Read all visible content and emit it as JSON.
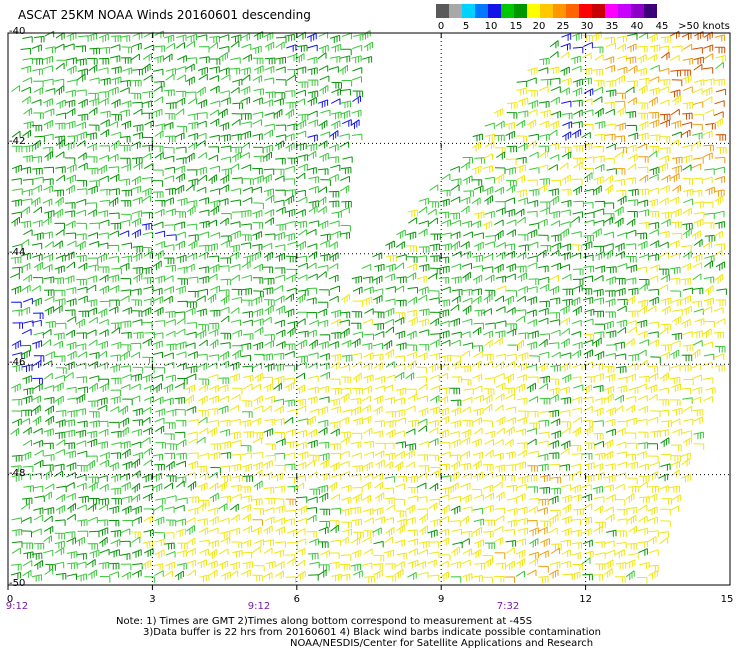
{
  "title": "ASCAT 25KM NOAA Winds 20160601 descending",
  "colorbar": {
    "colors": [
      "#5a5a5a",
      "#a8a8a8",
      "#00d2ff",
      "#0078ff",
      "#1414e6",
      "#00c800",
      "#009600",
      "#ffff00",
      "#ffc800",
      "#ff9600",
      "#ff6400",
      "#ff0000",
      "#c80000",
      "#ff00ff",
      "#c800ff",
      "#8c00c8",
      "#3c0078"
    ],
    "labels": [
      "0",
      "5",
      "10",
      "15",
      "20",
      "25",
      "30",
      "35",
      "40",
      "45",
      ">50 knots"
    ]
  },
  "map": {
    "lat_labels": [
      "-40",
      "-42",
      "-44",
      "-46",
      "-48",
      "-50"
    ],
    "lon_labels": [
      "0",
      "3",
      "6",
      "9",
      "12",
      "15"
    ],
    "time_labels": [
      "9:12",
      "9:12",
      "7:32"
    ]
  },
  "notes": [
    "Note: 1) Times are GMT 2)Times along bottom correspond to measurement at -45S",
    "3)Data buffer is 22 hrs from 20160601 4) Black wind barbs indicate possible contamination",
    "NOAA/NESDIS/Center for Satellite Applications and Research"
  ],
  "barb_colors": {
    "blue": "#1414e6",
    "green_light": "#3cc83c",
    "green_dark": "#0a960a",
    "yellow": "#f0e614",
    "orange": "#f0a014",
    "red_orange": "#d05000"
  }
}
